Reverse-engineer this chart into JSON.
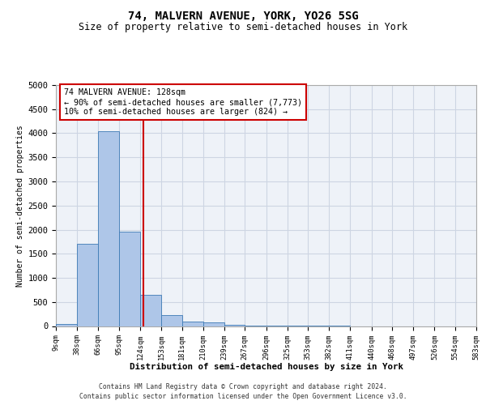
{
  "title": "74, MALVERN AVENUE, YORK, YO26 5SG",
  "subtitle": "Size of property relative to semi-detached houses in York",
  "xlabel": "Distribution of semi-detached houses by size in York",
  "ylabel": "Number of semi-detached properties",
  "bar_values": [
    50,
    1700,
    4050,
    1950,
    650,
    220,
    100,
    70,
    20,
    5,
    3,
    2,
    1,
    1,
    0,
    0,
    0,
    0,
    0,
    0
  ],
  "bin_edges": [
    9,
    38,
    66,
    95,
    124,
    153,
    181,
    210,
    239,
    267,
    296,
    325,
    353,
    382,
    411,
    440,
    468,
    497,
    526,
    554,
    583
  ],
  "bar_color": "#aec6e8",
  "bar_edge_color": "#3d7ab5",
  "property_size": 128,
  "red_line_color": "#cc0000",
  "annotation_line1": "74 MALVERN AVENUE: 128sqm",
  "annotation_line2": "← 90% of semi-detached houses are smaller (7,773)",
  "annotation_line3": "10% of semi-detached houses are larger (824) →",
  "annotation_box_color": "#cc0000",
  "footnote1": "Contains HM Land Registry data © Crown copyright and database right 2024.",
  "footnote2": "Contains public sector information licensed under the Open Government Licence v3.0.",
  "ylim": [
    0,
    5000
  ],
  "yticks": [
    0,
    500,
    1000,
    1500,
    2000,
    2500,
    3000,
    3500,
    4000,
    4500,
    5000
  ],
  "grid_color": "#cdd5e3",
  "background_color": "#eef2f8",
  "title_fontsize": 10,
  "subtitle_fontsize": 8.5
}
